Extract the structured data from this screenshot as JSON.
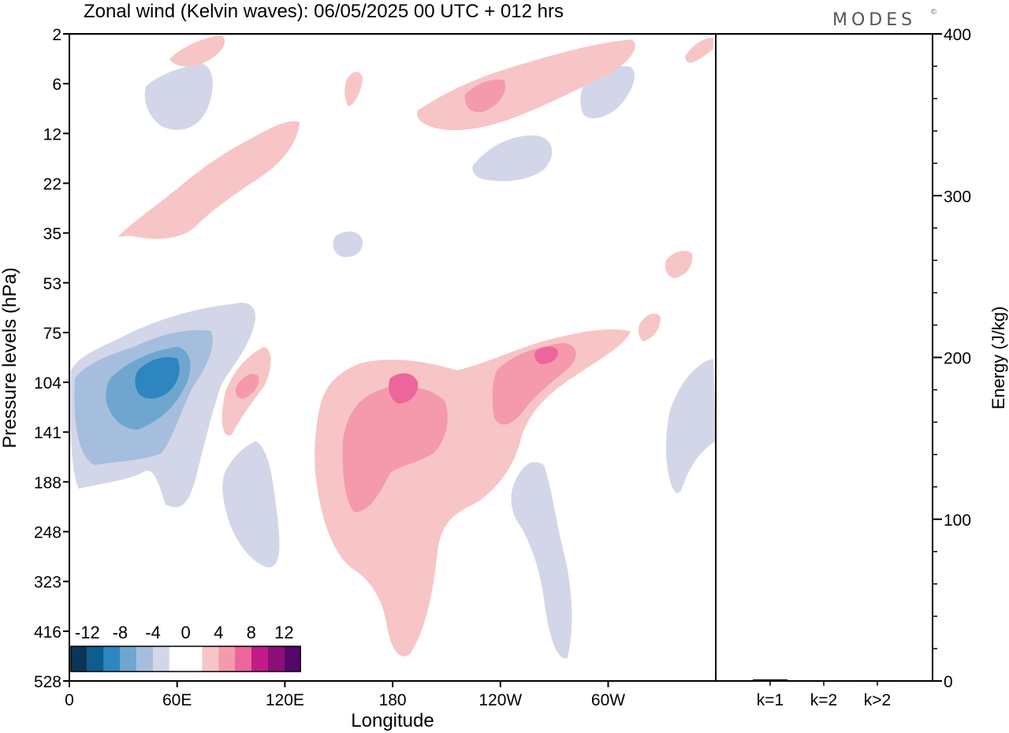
{
  "chart_data": {
    "type": "heatmap",
    "title": "Zonal wind (Kelvin waves):  06/05/2025  00 UTC  + 012 hrs",
    "brand": "MODES",
    "brand_mark": "©",
    "xlabel": "Longitude",
    "ylabel": "Pressure levels (hPa)",
    "x_ticks": [
      "0",
      "60E",
      "120E",
      "180",
      "120W",
      "60W"
    ],
    "y_ticks": [
      "2",
      "6",
      "12",
      "22",
      "35",
      "53",
      "75",
      "104",
      "141",
      "188",
      "248",
      "323",
      "416",
      "528"
    ],
    "colorbar": {
      "labels": [
        "-12",
        "-8",
        "-4",
        "0",
        "4",
        "8",
        "12"
      ],
      "colors": [
        "#0b3556",
        "#0e5d8f",
        "#2d86bf",
        "#6fa6cf",
        "#a6bedd",
        "#d3d6e8",
        "#ffffff",
        "#ffffff",
        "#f7c5c5",
        "#f49aac",
        "#ec659d",
        "#c31a87",
        "#8c0e78",
        "#55066b"
      ]
    },
    "energy_panel": {
      "ylabel": "Energy (J/kg)",
      "yticks": [
        "0",
        "100",
        "200",
        "300",
        "400"
      ],
      "ylim": [
        0,
        400
      ],
      "categories": [
        "k=1",
        "k=2",
        "k>2"
      ],
      "values": [
        1,
        0.3,
        0.5
      ]
    }
  }
}
